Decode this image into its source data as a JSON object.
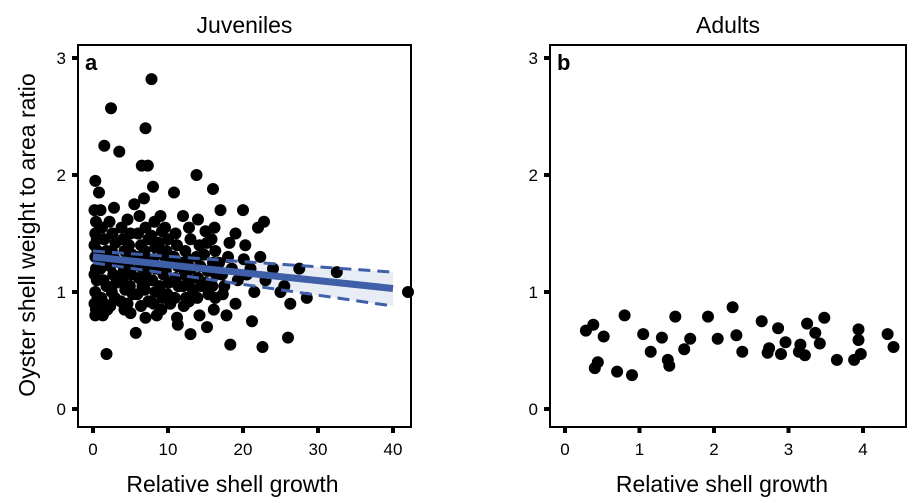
{
  "figure": {
    "ylabel": "Oyster shell weight to area ratio"
  },
  "chart_data": [
    {
      "type": "scatter",
      "panel_label": "a",
      "title": "Juveniles",
      "xlabel": "Relative shell growth",
      "ylabel": "Oyster shell weight to area ratio",
      "xlim": [
        -2,
        44
      ],
      "ylim": [
        0,
        3.1
      ],
      "xticks": [
        0,
        10,
        20,
        30,
        40
      ],
      "yticks": [
        0,
        1,
        2,
        3
      ],
      "grid": false,
      "colors": {
        "points": "#000000",
        "fit": "#3f5fa8",
        "band": "#3f5fa8"
      },
      "points": [
        [
          0.3,
          1.95
        ],
        [
          0.2,
          1.7
        ],
        [
          0.4,
          1.6
        ],
        [
          0.3,
          1.5
        ],
        [
          0.5,
          1.45
        ],
        [
          0.2,
          1.4
        ],
        [
          0.6,
          1.35
        ],
        [
          0.3,
          1.3
        ],
        [
          0.4,
          1.2
        ],
        [
          0.2,
          1.15
        ],
        [
          0.5,
          1.1
        ],
        [
          0.3,
          1.0
        ],
        [
          0.6,
          0.95
        ],
        [
          0.2,
          0.9
        ],
        [
          0.4,
          0.85
        ],
        [
          0.3,
          0.8
        ],
        [
          0.8,
          1.85
        ],
        [
          1.0,
          1.7
        ],
        [
          1.2,
          1.55
        ],
        [
          1.5,
          1.45
        ],
        [
          1.8,
          1.35
        ],
        [
          1.2,
          1.3
        ],
        [
          1.6,
          1.25
        ],
        [
          1.0,
          1.2
        ],
        [
          1.4,
          1.1
        ],
        [
          1.8,
          1.05
        ],
        [
          1.1,
          0.95
        ],
        [
          1.5,
          0.9
        ],
        [
          1.9,
          0.85
        ],
        [
          1.3,
          0.8
        ],
        [
          1.5,
          2.25
        ],
        [
          1.8,
          0.47
        ],
        [
          2.4,
          2.57
        ],
        [
          2.8,
          1.72
        ],
        [
          2.2,
          1.6
        ],
        [
          2.6,
          1.5
        ],
        [
          3.0,
          1.42
        ],
        [
          2.5,
          1.35
        ],
        [
          2.9,
          1.28
        ],
        [
          2.3,
          1.22
        ],
        [
          2.7,
          1.15
        ],
        [
          3.1,
          1.08
        ],
        [
          2.5,
          1.0
        ],
        [
          2.9,
          0.95
        ],
        [
          2.3,
          0.88
        ],
        [
          3.5,
          2.2
        ],
        [
          3.8,
          1.55
        ],
        [
          4.0,
          1.45
        ],
        [
          4.2,
          1.35
        ],
        [
          3.6,
          1.25
        ],
        [
          4.1,
          1.18
        ],
        [
          3.9,
          1.1
        ],
        [
          4.3,
          1.02
        ],
        [
          3.7,
          0.92
        ],
        [
          4.2,
          0.85
        ],
        [
          4.6,
          1.62
        ],
        [
          5.0,
          1.5
        ],
        [
          4.8,
          1.4
        ],
        [
          5.2,
          1.32
        ],
        [
          4.7,
          1.22
        ],
        [
          5.1,
          1.15
        ],
        [
          4.9,
          1.05
        ],
        [
          5.3,
          0.98
        ],
        [
          4.6,
          0.9
        ],
        [
          5.0,
          0.82
        ],
        [
          5.5,
          1.75
        ],
        [
          5.7,
          0.65
        ],
        [
          6.2,
          1.65
        ],
        [
          6.5,
          2.08
        ],
        [
          6.0,
          1.5
        ],
        [
          6.4,
          1.4
        ],
        [
          5.8,
          1.3
        ],
        [
          6.3,
          1.22
        ],
        [
          6.1,
          1.12
        ],
        [
          6.6,
          1.05
        ],
        [
          5.9,
          0.98
        ],
        [
          6.4,
          0.88
        ],
        [
          6.8,
          1.8
        ],
        [
          7.0,
          2.4
        ],
        [
          7.3,
          2.08
        ],
        [
          7.0,
          1.55
        ],
        [
          7.4,
          1.45
        ],
        [
          6.9,
          1.35
        ],
        [
          7.3,
          1.28
        ],
        [
          7.1,
          1.18
        ],
        [
          7.5,
          1.1
        ],
        [
          6.9,
          1.02
        ],
        [
          7.4,
          0.92
        ],
        [
          7.0,
          0.78
        ],
        [
          7.8,
          2.82
        ],
        [
          8.0,
          1.9
        ],
        [
          8.2,
          1.6
        ],
        [
          7.8,
          1.48
        ],
        [
          8.3,
          1.38
        ],
        [
          8.0,
          1.28
        ],
        [
          8.4,
          1.2
        ],
        [
          7.9,
          1.1
        ],
        [
          8.3,
          1.0
        ],
        [
          8.1,
          0.9
        ],
        [
          8.5,
          0.8
        ],
        [
          9.0,
          1.65
        ],
        [
          9.2,
          1.52
        ],
        [
          8.8,
          1.42
        ],
        [
          9.3,
          1.32
        ],
        [
          9.0,
          1.22
        ],
        [
          9.4,
          1.15
        ],
        [
          8.9,
          1.05
        ],
        [
          9.3,
          0.95
        ],
        [
          9.1,
          0.85
        ],
        [
          9.6,
          1.55
        ],
        [
          10.0,
          1.45
        ],
        [
          9.8,
          1.35
        ],
        [
          10.2,
          1.25
        ],
        [
          9.7,
          1.18
        ],
        [
          10.1,
          1.08
        ],
        [
          9.9,
          0.98
        ],
        [
          10.3,
          0.9
        ],
        [
          10.8,
          1.85
        ],
        [
          11.0,
          1.5
        ],
        [
          11.2,
          1.4
        ],
        [
          10.8,
          1.3
        ],
        [
          11.3,
          1.22
        ],
        [
          11.0,
          1.12
        ],
        [
          11.4,
          1.05
        ],
        [
          10.9,
          0.95
        ],
        [
          11.2,
          0.78
        ],
        [
          11.3,
          0.72
        ],
        [
          12.0,
          1.65
        ],
        [
          12.3,
          1.35
        ],
        [
          11.8,
          1.25
        ],
        [
          12.2,
          1.15
        ],
        [
          12.0,
          1.05
        ],
        [
          12.4,
          0.95
        ],
        [
          12.1,
          0.88
        ],
        [
          12.8,
          1.55
        ],
        [
          13.0,
          1.45
        ],
        [
          12.7,
          1.28
        ],
        [
          13.1,
          1.2
        ],
        [
          12.9,
          1.1
        ],
        [
          13.3,
          1.02
        ],
        [
          12.8,
          0.92
        ],
        [
          13.0,
          0.64
        ],
        [
          13.8,
          2.0
        ],
        [
          14.0,
          1.62
        ],
        [
          14.2,
          1.4
        ],
        [
          13.8,
          1.3
        ],
        [
          14.3,
          1.22
        ],
        [
          14.0,
          1.12
        ],
        [
          14.4,
          1.05
        ],
        [
          13.9,
          0.95
        ],
        [
          14.2,
          0.8
        ],
        [
          15.0,
          1.52
        ],
        [
          15.2,
          1.42
        ],
        [
          14.8,
          1.32
        ],
        [
          15.3,
          1.18
        ],
        [
          15.0,
          1.08
        ],
        [
          15.4,
          0.98
        ],
        [
          15.2,
          0.7
        ],
        [
          16.0,
          1.88
        ],
        [
          16.2,
          1.55
        ],
        [
          15.8,
          1.45
        ],
        [
          16.3,
          1.35
        ],
        [
          16.0,
          1.25
        ],
        [
          16.4,
          1.15
        ],
        [
          15.9,
          1.05
        ],
        [
          16.3,
          0.95
        ],
        [
          16.1,
          0.85
        ],
        [
          16.8,
          1.25
        ],
        [
          17.0,
          1.7
        ],
        [
          17.2,
          1.15
        ],
        [
          17.5,
          1.05
        ],
        [
          17.3,
          0.98
        ],
        [
          18.0,
          1.3
        ],
        [
          18.2,
          1.42
        ],
        [
          17.8,
          0.8
        ],
        [
          18.5,
          1.2
        ],
        [
          18.3,
          0.55
        ],
        [
          19.0,
          1.5
        ],
        [
          19.3,
          1.1
        ],
        [
          19.0,
          0.9
        ],
        [
          20.0,
          1.7
        ],
        [
          20.3,
          1.4
        ],
        [
          20.1,
          1.28
        ],
        [
          20.5,
          1.15
        ],
        [
          21.0,
          1.2
        ],
        [
          21.2,
          0.75
        ],
        [
          21.5,
          1.0
        ],
        [
          22.0,
          1.55
        ],
        [
          22.3,
          1.3
        ],
        [
          22.8,
          1.6
        ],
        [
          23.0,
          1.1
        ],
        [
          22.6,
          0.53
        ],
        [
          24.0,
          1.2
        ],
        [
          25.0,
          1.0
        ],
        [
          25.5,
          1.05
        ],
        [
          26.0,
          0.61
        ],
        [
          26.3,
          0.9
        ],
        [
          27.5,
          1.2
        ],
        [
          28.5,
          0.95
        ],
        [
          32.5,
          1.17
        ],
        [
          42.0,
          1.0
        ]
      ],
      "fit": {
        "x": [
          0,
          40
        ],
        "y": [
          1.3,
          1.03
        ]
      },
      "band_lower": {
        "x": [
          0,
          40
        ],
        "y": [
          1.25,
          0.88
        ]
      },
      "band_upper": {
        "x": [
          0,
          40
        ],
        "y": [
          1.35,
          1.17
        ]
      }
    },
    {
      "type": "scatter",
      "panel_label": "b",
      "title": "Adults",
      "xlabel": "Relative shell growth",
      "ylabel": "",
      "xlim": [
        -0.1,
        4.6
      ],
      "ylim": [
        0,
        3.1
      ],
      "xticks": [
        0,
        1,
        2,
        3,
        4
      ],
      "yticks": [
        0,
        1,
        2,
        3
      ],
      "grid": false,
      "colors": {
        "points": "#000000"
      },
      "points": [
        [
          0.28,
          0.67
        ],
        [
          0.38,
          0.72
        ],
        [
          0.4,
          0.35
        ],
        [
          0.44,
          0.4
        ],
        [
          0.52,
          0.62
        ],
        [
          0.7,
          0.32
        ],
        [
          0.8,
          0.8
        ],
        [
          0.9,
          0.29
        ],
        [
          1.05,
          0.64
        ],
        [
          1.15,
          0.49
        ],
        [
          1.3,
          0.61
        ],
        [
          1.38,
          0.42
        ],
        [
          1.4,
          0.37
        ],
        [
          1.48,
          0.79
        ],
        [
          1.6,
          0.51
        ],
        [
          1.68,
          0.6
        ],
        [
          1.92,
          0.79
        ],
        [
          2.05,
          0.6
        ],
        [
          2.25,
          0.87
        ],
        [
          2.3,
          0.63
        ],
        [
          2.38,
          0.49
        ],
        [
          2.64,
          0.75
        ],
        [
          2.72,
          0.48
        ],
        [
          2.74,
          0.52
        ],
        [
          2.86,
          0.69
        ],
        [
          2.9,
          0.47
        ],
        [
          2.96,
          0.57
        ],
        [
          3.14,
          0.49
        ],
        [
          3.16,
          0.55
        ],
        [
          3.22,
          0.46
        ],
        [
          3.25,
          0.73
        ],
        [
          3.36,
          0.65
        ],
        [
          3.42,
          0.56
        ],
        [
          3.48,
          0.78
        ],
        [
          3.65,
          0.42
        ],
        [
          3.88,
          0.42
        ],
        [
          3.94,
          0.68
        ],
        [
          3.94,
          0.59
        ],
        [
          3.97,
          0.47
        ],
        [
          4.33,
          0.64
        ],
        [
          4.41,
          0.53
        ]
      ]
    }
  ]
}
